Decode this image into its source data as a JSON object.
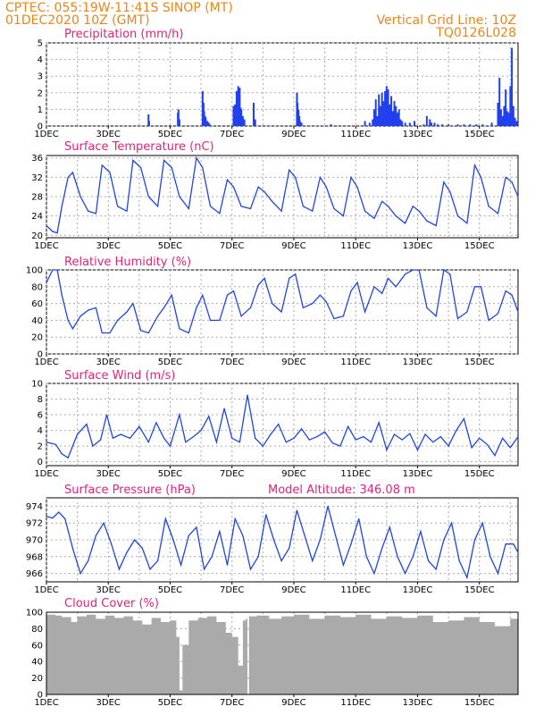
{
  "header": {
    "line1": "CPTEC:   055:19W-11:41S   SINOP  (MT)",
    "line2": "01DEC2020  10Z (GMT)",
    "grid_note": "Vertical Grid Line: 10Z",
    "code": "TQ0126L028"
  },
  "x_ticks": [
    "1DEC",
    "3DEC",
    "5DEC",
    "7DEC",
    "9DEC",
    "11DEC",
    "13DEC",
    "15DEC"
  ],
  "x_tick_days": [
    0,
    2,
    4,
    6,
    8,
    10,
    12,
    14
  ],
  "x_range_days": [
    0,
    15.25
  ],
  "chart_data": [
    {
      "type": "bar",
      "title": "Precipitation (mm/h)",
      "ylim": [
        0,
        5
      ],
      "yticks": [
        0,
        1,
        2,
        3,
        4,
        5
      ],
      "color": "#2040f0",
      "x": [
        3.3,
        3.32,
        4.25,
        4.27,
        4.3,
        5.05,
        5.08,
        5.1,
        5.13,
        5.15,
        5.2,
        5.23,
        5.25,
        5.28,
        6.05,
        6.1,
        6.15,
        6.2,
        6.25,
        6.28,
        6.3,
        6.35,
        6.4,
        6.7,
        6.75,
        8.1,
        8.12,
        8.15,
        8.18,
        8.2,
        8.25,
        9.2,
        10.3,
        10.45,
        10.55,
        10.6,
        10.65,
        10.7,
        10.75,
        10.8,
        10.85,
        10.9,
        10.95,
        11.0,
        11.05,
        11.1,
        11.15,
        11.2,
        11.25,
        11.3,
        11.35,
        11.4,
        11.45,
        11.5,
        11.6,
        11.75,
        11.9,
        12.2,
        12.3,
        12.4,
        12.45,
        12.55,
        12.65,
        12.8,
        13.0,
        13.3,
        13.5,
        13.7,
        13.9,
        14.1,
        14.4,
        14.6,
        14.65,
        14.7,
        14.75,
        14.8,
        14.85,
        14.9,
        14.95,
        15.0,
        15.05,
        15.1,
        15.15,
        15.2
      ],
      "values": [
        0.7,
        0.3,
        0.8,
        1.0,
        0.4,
        2.1,
        1.4,
        0.9,
        0.6,
        0.5,
        0.3,
        0.2,
        0.2,
        0.1,
        1.2,
        1.3,
        2.1,
        2.4,
        2.3,
        1.1,
        1.0,
        0.6,
        0.4,
        1.4,
        0.4,
        2.0,
        1.4,
        1.0,
        0.6,
        0.3,
        0.2,
        0.1,
        0.3,
        0.2,
        0.4,
        1.0,
        1.6,
        0.6,
        1.9,
        1.2,
        2.0,
        1.5,
        2.1,
        2.4,
        2.2,
        1.3,
        1.8,
        0.9,
        1.5,
        1.2,
        0.8,
        1.0,
        0.4,
        0.3,
        0.2,
        0.2,
        0.3,
        0.1,
        0.6,
        0.4,
        0.2,
        0.2,
        0.1,
        0.1,
        0.1,
        0.1,
        0.1,
        0.1,
        0.1,
        0.1,
        0.2,
        1.4,
        2.9,
        1.0,
        0.6,
        1.2,
        2.2,
        0.9,
        0.8,
        2.4,
        4.7,
        1.2,
        0.5,
        0.3
      ]
    },
    {
      "type": "line",
      "title": "Surface Temperature (nC)",
      "ylim": [
        19.5,
        36.5
      ],
      "yticks": [
        20,
        24,
        28,
        32,
        36
      ],
      "color": "#2045e0",
      "x": [
        0,
        0.2,
        0.35,
        0.5,
        0.7,
        0.85,
        1.1,
        1.35,
        1.6,
        1.8,
        2.05,
        2.3,
        2.6,
        2.8,
        3.05,
        3.3,
        3.6,
        3.8,
        4.05,
        4.3,
        4.6,
        4.85,
        5.05,
        5.3,
        5.6,
        5.85,
        6.05,
        6.3,
        6.6,
        6.85,
        7.05,
        7.3,
        7.6,
        7.85,
        8.05,
        8.3,
        8.6,
        8.85,
        9.05,
        9.3,
        9.6,
        9.85,
        10.05,
        10.3,
        10.6,
        10.85,
        11.05,
        11.3,
        11.6,
        11.85,
        12.05,
        12.3,
        12.6,
        12.85,
        13.05,
        13.3,
        13.6,
        13.85,
        14.05,
        14.3,
        14.6,
        14.85,
        15.05,
        15.25
      ],
      "values": [
        22,
        20.8,
        20.5,
        26,
        32,
        33,
        28,
        25,
        24.5,
        34.5,
        33,
        26,
        25,
        35.5,
        34,
        28,
        26,
        35.5,
        34,
        28,
        25.5,
        36,
        34,
        26,
        24.5,
        31.5,
        30,
        26,
        25.5,
        30,
        29,
        27,
        25,
        33.5,
        32,
        26,
        25,
        32,
        30,
        25.5,
        24,
        32,
        30,
        25,
        23.5,
        27,
        26,
        24,
        22.5,
        26,
        25,
        23,
        22,
        31,
        29,
        24,
        22.5,
        34.5,
        32,
        26,
        24.5,
        32,
        31,
        28
      ]
    },
    {
      "type": "line",
      "title": "Relative Humidity (%)",
      "ylim": [
        0,
        100
      ],
      "yticks": [
        0,
        20,
        40,
        60,
        80,
        100
      ],
      "color": "#2045e0",
      "x": [
        0,
        0.2,
        0.35,
        0.5,
        0.7,
        0.85,
        1.1,
        1.35,
        1.6,
        1.8,
        2.05,
        2.3,
        2.6,
        2.8,
        3.05,
        3.3,
        3.6,
        3.8,
        4.05,
        4.3,
        4.6,
        4.85,
        5.05,
        5.3,
        5.6,
        5.85,
        6.05,
        6.3,
        6.6,
        6.85,
        7.05,
        7.3,
        7.6,
        7.85,
        8.05,
        8.3,
        8.6,
        8.85,
        9.05,
        9.3,
        9.6,
        9.85,
        10.05,
        10.3,
        10.6,
        10.85,
        11.05,
        11.3,
        11.6,
        11.85,
        12.05,
        12.3,
        12.6,
        12.85,
        13.05,
        13.3,
        13.6,
        13.85,
        14.05,
        14.3,
        14.6,
        14.85,
        15.05,
        15.25
      ],
      "values": [
        85,
        100,
        100,
        70,
        40,
        30,
        45,
        52,
        55,
        25,
        25,
        40,
        50,
        60,
        28,
        25,
        45,
        55,
        70,
        30,
        25,
        55,
        70,
        40,
        40,
        70,
        75,
        45,
        55,
        82,
        90,
        60,
        50,
        90,
        95,
        55,
        60,
        70,
        62,
        42,
        45,
        75,
        85,
        50,
        80,
        72,
        90,
        80,
        95,
        100,
        100,
        55,
        45,
        100,
        95,
        42,
        50,
        80,
        80,
        40,
        48,
        75,
        70,
        50
      ]
    },
    {
      "type": "line",
      "title": "Surface Wind (m/s)",
      "ylim": [
        -0.5,
        10
      ],
      "yticks": [
        0,
        2,
        4,
        6,
        8,
        10
      ],
      "color": "#2045e0",
      "x": [
        0,
        0.3,
        0.5,
        0.7,
        1.0,
        1.3,
        1.5,
        1.75,
        1.95,
        2.15,
        2.4,
        2.7,
        3.0,
        3.3,
        3.55,
        3.8,
        4.0,
        4.3,
        4.5,
        4.75,
        5.0,
        5.25,
        5.5,
        5.75,
        6.0,
        6.25,
        6.5,
        6.75,
        7.0,
        7.25,
        7.5,
        7.75,
        8.0,
        8.25,
        8.5,
        8.75,
        9.0,
        9.25,
        9.5,
        9.75,
        10.0,
        10.25,
        10.5,
        10.75,
        11.0,
        11.25,
        11.5,
        11.75,
        12.0,
        12.25,
        12.5,
        12.75,
        13.0,
        13.25,
        13.5,
        13.75,
        14.0,
        14.25,
        14.5,
        14.75,
        15.0,
        15.25
      ],
      "values": [
        2.5,
        2.2,
        1.0,
        0.5,
        3.5,
        4.8,
        2.0,
        2.8,
        6.0,
        3.0,
        3.5,
        3.0,
        4.5,
        2.5,
        5.0,
        3.0,
        2.0,
        6.0,
        2.5,
        3.2,
        4.0,
        5.8,
        2.5,
        6.8,
        3.0,
        2.5,
        8.5,
        3.0,
        2.0,
        3.5,
        4.8,
        2.5,
        3.0,
        4.2,
        2.8,
        3.2,
        3.8,
        2.4,
        2.0,
        4.5,
        2.8,
        3.2,
        2.5,
        5.0,
        1.5,
        3.5,
        2.8,
        3.6,
        1.5,
        3.5,
        2.5,
        3.2,
        2.0,
        4.0,
        5.5,
        1.8,
        3.0,
        2.2,
        0.8,
        3.0,
        1.8,
        3.2
      ]
    },
    {
      "type": "line",
      "title": "Surface Pressure (hPa)",
      "annotation": "Model Altitude: 346.08  m",
      "ylim": [
        965,
        975
      ],
      "yticks": [
        966,
        968,
        970,
        972,
        974
      ],
      "color": "#2045e0",
      "x": [
        0,
        0.2,
        0.4,
        0.6,
        0.85,
        1.1,
        1.35,
        1.6,
        1.85,
        2.1,
        2.35,
        2.6,
        2.85,
        3.1,
        3.35,
        3.6,
        3.85,
        4.1,
        4.35,
        4.6,
        4.85,
        5.1,
        5.35,
        5.6,
        5.85,
        6.1,
        6.35,
        6.6,
        6.85,
        7.1,
        7.35,
        7.6,
        7.85,
        8.1,
        8.35,
        8.6,
        8.85,
        9.1,
        9.35,
        9.6,
        9.85,
        10.1,
        10.35,
        10.6,
        10.85,
        11.1,
        11.35,
        11.6,
        11.85,
        12.1,
        12.35,
        12.6,
        12.85,
        13.1,
        13.35,
        13.6,
        13.85,
        14.1,
        14.35,
        14.6,
        14.85,
        15.1,
        15.25
      ],
      "values": [
        972.8,
        972.6,
        973.3,
        972.5,
        969.0,
        966.0,
        967.5,
        970.5,
        972.0,
        969.5,
        966.5,
        968.5,
        970.0,
        969.0,
        966.5,
        967.5,
        972.5,
        970.0,
        967.0,
        970.5,
        971.5,
        966.5,
        968.0,
        971.0,
        967.0,
        972.5,
        970.5,
        966.5,
        968.0,
        973.0,
        970.0,
        967.5,
        969.0,
        973.5,
        970.5,
        967.5,
        970.0,
        974.0,
        970.5,
        967.0,
        969.5,
        972.5,
        968.0,
        966.0,
        969.0,
        971.5,
        968.0,
        966.0,
        968.0,
        971.0,
        967.5,
        966.5,
        970.0,
        972.0,
        967.5,
        965.5,
        970.0,
        972.0,
        968.0,
        966.0,
        969.5,
        969.5,
        968.5
      ]
    },
    {
      "type": "area",
      "title": "Cloud Cover (%)",
      "ylim": [
        0,
        100
      ],
      "yticks": [
        0,
        20,
        40,
        60,
        80,
        100
      ],
      "color": "#aaaaaa",
      "x": [
        0,
        0.3,
        0.5,
        0.8,
        1.0,
        1.3,
        1.6,
        1.9,
        2.2,
        2.5,
        2.8,
        3.1,
        3.4,
        3.7,
        4.0,
        4.2,
        4.3,
        4.4,
        4.6,
        4.9,
        5.2,
        5.5,
        5.8,
        6.0,
        6.2,
        6.35,
        6.45,
        6.5,
        6.55,
        6.8,
        7.2,
        7.6,
        8.0,
        8.5,
        9.0,
        9.5,
        10.0,
        10.5,
        11.0,
        11.5,
        12.0,
        12.5,
        13.0,
        13.5,
        14.0,
        14.5,
        15.0,
        15.25
      ],
      "values": [
        97,
        96,
        94,
        88,
        95,
        97,
        92,
        96,
        93,
        95,
        90,
        85,
        93,
        88,
        90,
        70,
        5,
        60,
        90,
        93,
        95,
        88,
        75,
        70,
        35,
        90,
        92,
        0,
        95,
        96,
        92,
        95,
        97,
        92,
        96,
        94,
        97,
        92,
        95,
        93,
        96,
        88,
        90,
        94,
        88,
        83,
        92,
        95
      ]
    }
  ]
}
